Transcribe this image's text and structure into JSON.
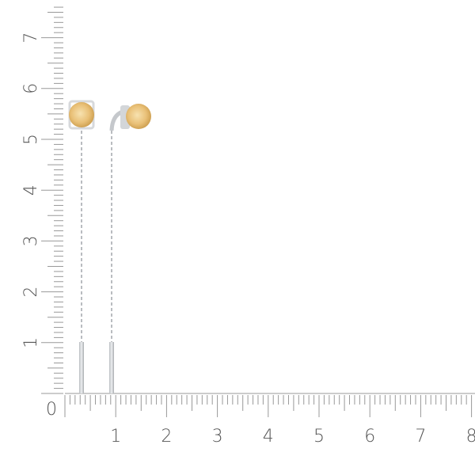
{
  "ruler": {
    "origin_label": "0",
    "x_labels": [
      "1",
      "2",
      "3",
      "4",
      "5",
      "6",
      "7",
      "8"
    ],
    "y_labels": [
      "1",
      "2",
      "3",
      "4",
      "5",
      "6",
      "7"
    ]
  },
  "product": {
    "stone_color": "#e9c077",
    "metal_color": "#cfd2d6"
  }
}
